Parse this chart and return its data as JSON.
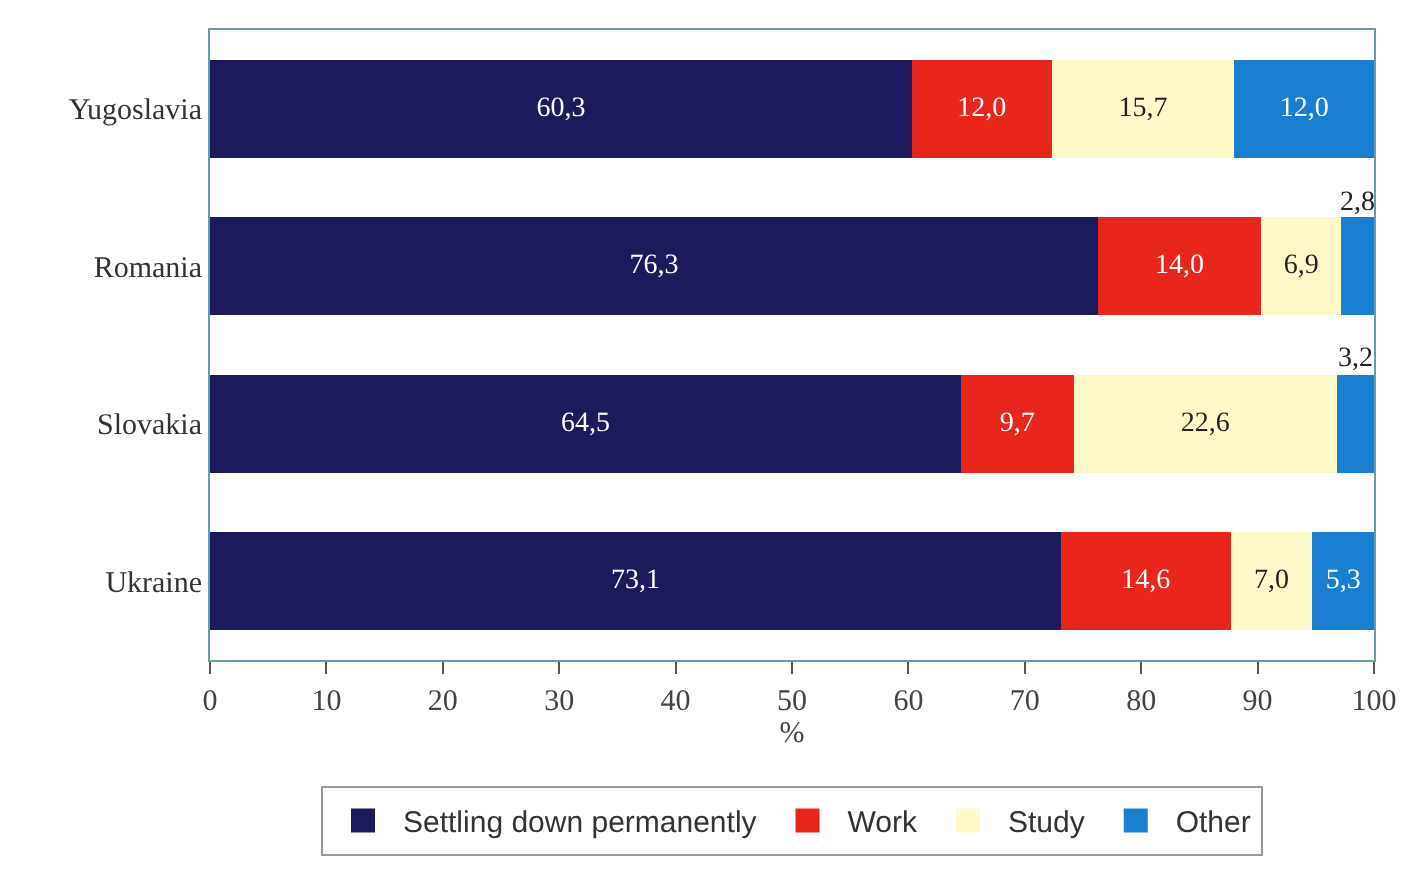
{
  "chart_data": {
    "type": "bar",
    "orientation": "horizontal",
    "stacked": true,
    "categories": [
      "Yugoslavia",
      "Romania",
      "Slovakia",
      "Ukraine"
    ],
    "series": [
      {
        "name": "Settling down permanently",
        "color": "#1c1a5c",
        "values": [
          60.3,
          76.3,
          64.5,
          73.1
        ],
        "value_labels": [
          "60,3",
          "76,3",
          "64,5",
          "73,1"
        ]
      },
      {
        "name": "Work",
        "color": "#e8261c",
        "values": [
          12.0,
          14.0,
          9.7,
          14.6
        ],
        "value_labels": [
          "12,0",
          "14,0",
          "9,7",
          "14,6"
        ]
      },
      {
        "name": "Study",
        "color": "#fff8c8",
        "values": [
          15.7,
          6.9,
          22.6,
          7.0
        ],
        "value_labels": [
          "15,7",
          "6,9",
          "22,6",
          "7,0"
        ]
      },
      {
        "name": "Other",
        "color": "#1a7fd0",
        "values": [
          12.0,
          2.8,
          3.2,
          5.3
        ],
        "value_labels": [
          "12,0",
          "2,8",
          "3,2",
          "5,3"
        ]
      }
    ],
    "xlim": [
      0,
      100
    ],
    "xticks": [
      0,
      10,
      20,
      30,
      40,
      50,
      60,
      70,
      80,
      90,
      100
    ],
    "xlabel": "%",
    "grid": false,
    "legend": "bottom"
  }
}
